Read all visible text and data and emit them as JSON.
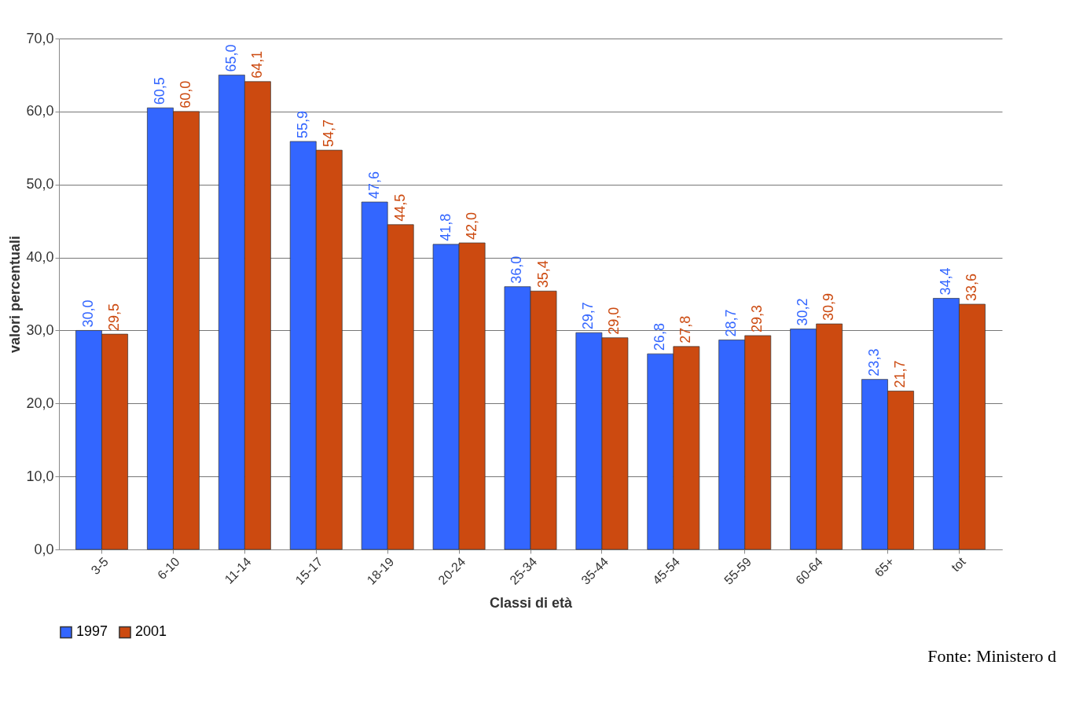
{
  "chart_data": {
    "type": "bar",
    "xlabel": "Classi di età",
    "ylabel": "valori percentuali",
    "categories": [
      "3-5",
      "6-10",
      "11-14",
      "15-17",
      "18-19",
      "20-24",
      "25-34",
      "35-44",
      "45-54",
      "55-59",
      "60-64",
      "65+",
      "tot"
    ],
    "series": [
      {
        "name": "1997",
        "color": "#3366ff",
        "values": [
          30.0,
          60.5,
          65.0,
          55.9,
          47.6,
          41.8,
          36.0,
          29.7,
          26.8,
          28.7,
          30.2,
          23.3,
          34.4
        ],
        "value_labels": [
          "30,0",
          "60,5",
          "65,0",
          "55,9",
          "47,6",
          "41,8",
          "36,0",
          "29,7",
          "26,8",
          "28,7",
          "30,2",
          "23,3",
          "34,4"
        ]
      },
      {
        "name": "2001",
        "color": "#cc4a10",
        "values": [
          29.5,
          60.0,
          64.1,
          54.7,
          44.5,
          42.0,
          35.4,
          29.0,
          27.8,
          29.3,
          30.9,
          21.7,
          33.6
        ],
        "value_labels": [
          "29,5",
          "60,0",
          "64,1",
          "54,7",
          "44,5",
          "42,0",
          "35,4",
          "29,0",
          "27,8",
          "29,3",
          "30,9",
          "21,7",
          "33,6"
        ]
      }
    ],
    "ylim": [
      0,
      70
    ],
    "yticks": [
      {
        "value": 0,
        "label": "0,0"
      },
      {
        "value": 10,
        "label": "10,0"
      },
      {
        "value": 20,
        "label": "20,0"
      },
      {
        "value": 30,
        "label": "30,0"
      },
      {
        "value": 40,
        "label": "40,0"
      },
      {
        "value": 50,
        "label": "50,0"
      },
      {
        "value": 60,
        "label": "60,0"
      },
      {
        "value": 70,
        "label": "70,0"
      }
    ],
    "grid": "y",
    "legend": "bottom",
    "annotations": [
      "Fonte: Ministero d"
    ]
  }
}
